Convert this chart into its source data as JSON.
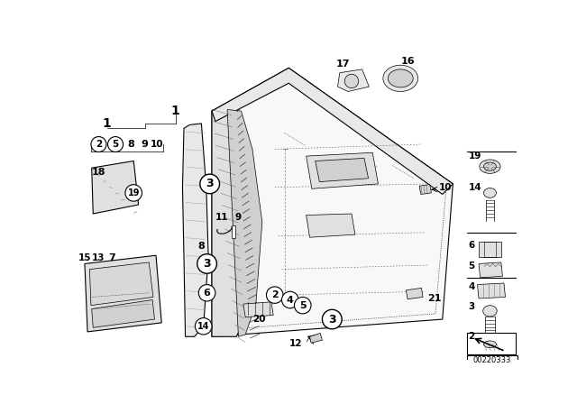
{
  "bg_color": "#ffffff",
  "diagram_number": "00220333",
  "line_color": "#000000",
  "gray_fill": "#f0f0f0",
  "dark_fill": "#cccccc",
  "figsize": [
    6.4,
    4.48
  ],
  "dpi": 100
}
